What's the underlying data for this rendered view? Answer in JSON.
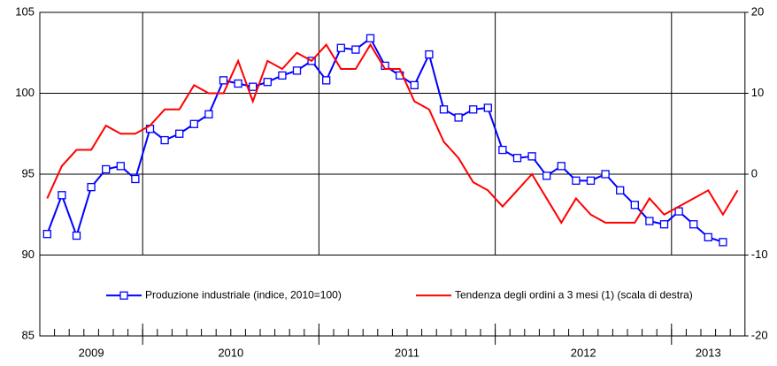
{
  "chart_data": {
    "type": "line",
    "categories": [
      null,
      null,
      null,
      null,
      null,
      null,
      null,
      null,
      null,
      null,
      null,
      null,
      null,
      null,
      null,
      null,
      null,
      null,
      null,
      null,
      null,
      null,
      null,
      null,
      null,
      null,
      null,
      null,
      null,
      null,
      null,
      null,
      null,
      null,
      null,
      null,
      null,
      null,
      null,
      null,
      null,
      null,
      null,
      null,
      null,
      null,
      null,
      null
    ],
    "years": [
      {
        "label": "2009",
        "months": 7
      },
      {
        "label": "2010",
        "months": 12
      },
      {
        "label": "2011",
        "months": 12
      },
      {
        "label": "2012",
        "months": 12
      },
      {
        "label": "2013",
        "months": 5
      }
    ],
    "ylim": [
      85,
      105
    ],
    "yticks": [
      85,
      90,
      95,
      100,
      105
    ],
    "y2lim": [
      -20,
      20
    ],
    "y2ticks": [
      -20,
      -10,
      0,
      10,
      20
    ],
    "grid": true,
    "series": [
      {
        "name": "Produzione industriale (indice, 2010=100)",
        "color": "#0000ff",
        "marker": "square",
        "values": [
          91.3,
          93.7,
          91.2,
          94.2,
          95.3,
          95.5,
          94.7,
          97.8,
          97.1,
          97.5,
          98.1,
          98.7,
          100.8,
          100.6,
          100.4,
          100.7,
          101.1,
          101.4,
          102.0,
          100.8,
          102.8,
          102.7,
          103.4,
          101.7,
          101.1,
          100.5,
          102.4,
          99.0,
          98.5,
          99.0,
          99.1,
          96.5,
          96.0,
          96.1,
          94.9,
          95.5,
          94.6,
          94.6,
          95.0,
          94.0,
          93.1,
          92.1,
          91.9,
          92.7,
          91.9,
          91.1,
          90.8,
          null
        ]
      },
      {
        "name": "Tendenza degli ordini a 3 mesi (1) (scala di destra)",
        "color": "#ff0000",
        "axis": "y2",
        "values": [
          -3,
          1,
          3,
          3,
          6,
          5,
          5,
          6,
          8,
          8,
          11,
          10,
          10,
          14,
          9,
          14,
          13,
          15,
          14,
          16,
          13,
          13,
          16,
          13,
          13,
          9,
          8,
          4,
          2,
          -1,
          -2,
          -4,
          -2,
          0,
          -3,
          -6,
          -3,
          -5,
          -6,
          -6,
          -6,
          -3,
          -5,
          -4,
          -3,
          -2,
          -5,
          -2
        ]
      }
    ]
  }
}
